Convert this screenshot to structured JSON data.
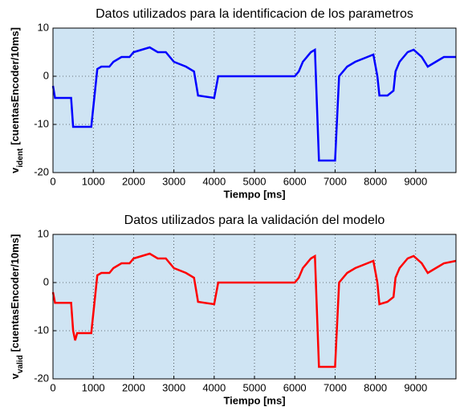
{
  "chart_data": [
    {
      "type": "line",
      "title": "Datos utilizados para la identificacion de los parametros",
      "xlabel": "Tiempo [ms]",
      "ylabel": {
        "base": "v",
        "sub": "ident",
        "rest": "[cuentasEncoder/10ms]"
      },
      "color": "#0000ff",
      "x": [
        0,
        50,
        450,
        500,
        950,
        1100,
        1200,
        1400,
        1500,
        1700,
        1900,
        2000,
        2200,
        2400,
        2600,
        2800,
        3000,
        3300,
        3500,
        3600,
        4000,
        4100,
        6000,
        6100,
        6200,
        6400,
        6500,
        6600,
        7000,
        7100,
        7300,
        7500,
        7800,
        7950,
        8050,
        8100,
        8300,
        8450,
        8500,
        8600,
        8800,
        8950,
        9150,
        9300,
        9500,
        9700,
        10000
      ],
      "values": [
        -2,
        -4.5,
        -4.5,
        -10.5,
        -10.5,
        1.5,
        2,
        2,
        3,
        4,
        4,
        5,
        5.5,
        6,
        5,
        5,
        3,
        2,
        1,
        -4,
        -4.5,
        0,
        0,
        1,
        3,
        5,
        5.5,
        -17.5,
        -17.5,
        0,
        2,
        3,
        4,
        4.5,
        0,
        -4,
        -4,
        -3,
        1,
        3,
        5,
        5.5,
        4,
        2,
        3,
        4,
        4
      ],
      "xlim": [
        0,
        10000
      ],
      "xticks": [
        0,
        1000,
        2000,
        3000,
        4000,
        5000,
        6000,
        7000,
        8000,
        9000
      ],
      "ylim": [
        -20,
        10
      ],
      "yticks": [
        -20,
        -10,
        0,
        10
      ],
      "grid": true
    },
    {
      "type": "line",
      "title": "Datos utilizados para la validación del modelo",
      "xlabel": "Tiempo [ms]",
      "ylabel": {
        "base": "v",
        "sub": "valid",
        "rest": "[cuentasEncoder/10ms]"
      },
      "color": "#ff0000",
      "x": [
        0,
        50,
        450,
        500,
        550,
        600,
        950,
        1100,
        1200,
        1400,
        1500,
        1700,
        1900,
        2000,
        2200,
        2400,
        2600,
        2800,
        3000,
        3300,
        3500,
        3600,
        4000,
        4100,
        6000,
        6100,
        6200,
        6400,
        6500,
        6600,
        7000,
        7100,
        7300,
        7500,
        7800,
        7950,
        8050,
        8100,
        8300,
        8450,
        8500,
        8600,
        8800,
        8950,
        9150,
        9300,
        9500,
        9700,
        10000
      ],
      "values": [
        -2,
        -4.2,
        -4.2,
        -10,
        -12,
        -10.5,
        -10.5,
        1.5,
        2,
        2,
        3,
        4,
        4,
        5,
        5.5,
        6,
        5,
        5,
        3,
        2,
        1,
        -4,
        -4.5,
        0,
        0,
        1,
        3,
        5,
        5.5,
        -17.5,
        -17.5,
        0,
        2,
        3,
        4,
        4.5,
        0,
        -4.5,
        -4,
        -3,
        1,
        3,
        5,
        5.5,
        4,
        2,
        3,
        4,
        4.5
      ],
      "xlim": [
        0,
        10000
      ],
      "xticks": [
        0,
        1000,
        2000,
        3000,
        4000,
        5000,
        6000,
        7000,
        8000,
        9000
      ],
      "ylim": [
        -20,
        10
      ],
      "yticks": [
        -20,
        -10,
        0,
        10
      ],
      "grid": true
    }
  ]
}
